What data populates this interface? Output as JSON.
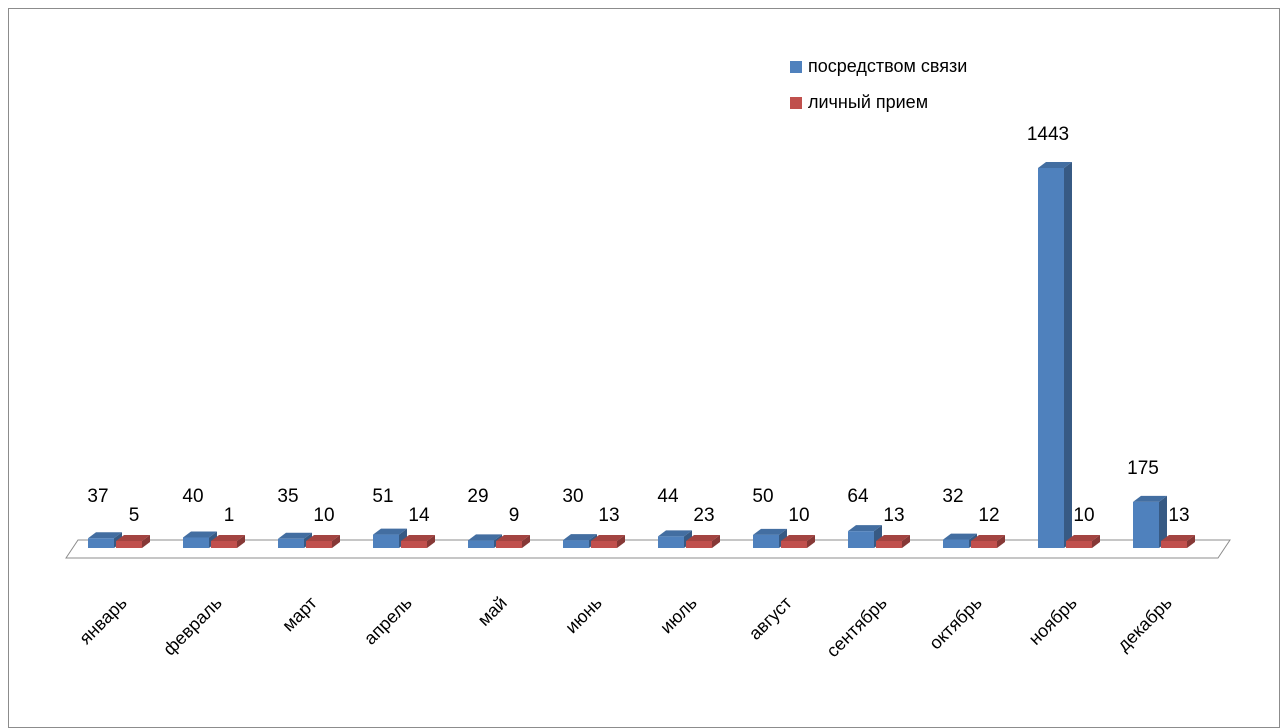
{
  "chart_data": {
    "type": "bar",
    "title": "",
    "xlabel": "",
    "ylabel": "",
    "categories": [
      "январь",
      "февраль",
      "март",
      "апрель",
      "май",
      "июнь",
      "июль",
      "август",
      "сентябрь",
      "октябрь",
      "ноябрь",
      "декабрь"
    ],
    "series": [
      {
        "name": "посредством связи",
        "color": "#4f81bd",
        "values": [
          37,
          40,
          35,
          51,
          29,
          30,
          44,
          50,
          64,
          32,
          1443,
          175
        ]
      },
      {
        "name": "личный прием",
        "color": "#c0504d",
        "values": [
          5,
          1,
          10,
          14,
          9,
          13,
          23,
          10,
          13,
          12,
          10,
          13
        ]
      }
    ],
    "ylim": [
      0,
      1443
    ],
    "grid": false,
    "legend": "top-right",
    "data_labels": true
  }
}
